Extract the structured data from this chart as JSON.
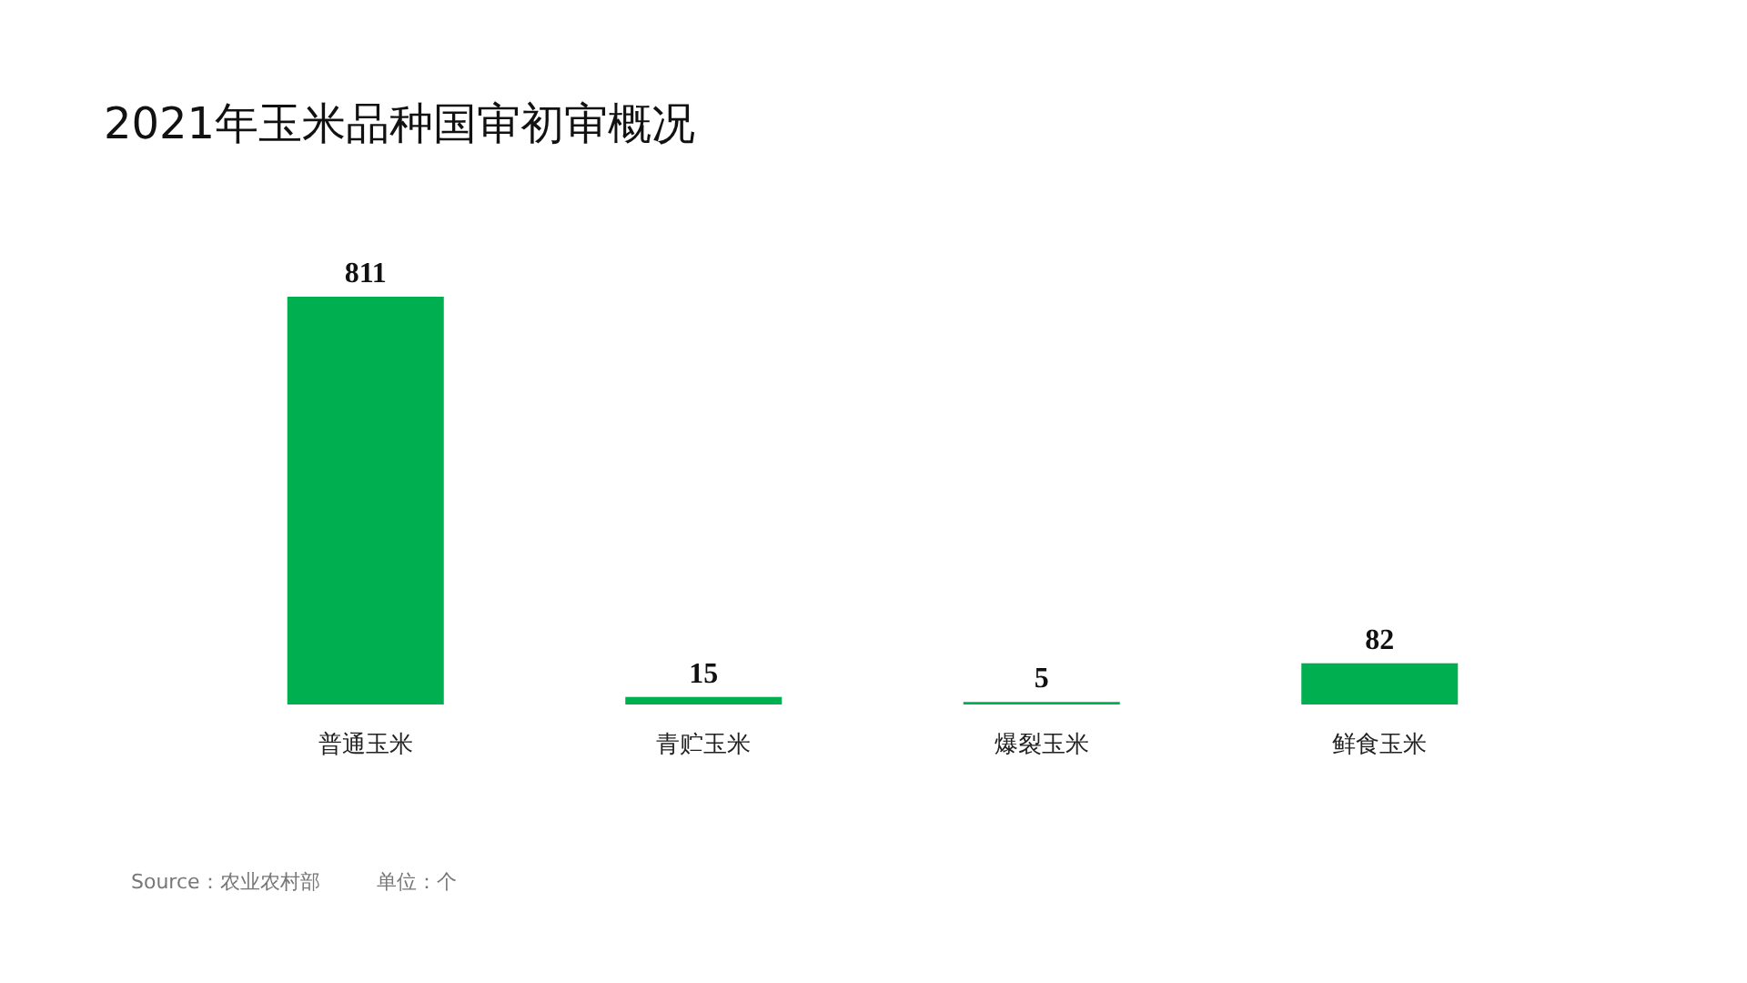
{
  "chart_data": {
    "type": "bar",
    "title": "2021年玉米品种国审初审概况",
    "categories": [
      "普通玉米",
      "青贮玉米",
      "爆裂玉米",
      "鲜食玉米"
    ],
    "values": [
      811,
      15,
      5,
      82
    ],
    "color": "#00b050",
    "data_labels": true,
    "annotations": [
      "Source：农业农村部",
      "单位：个"
    ]
  }
}
